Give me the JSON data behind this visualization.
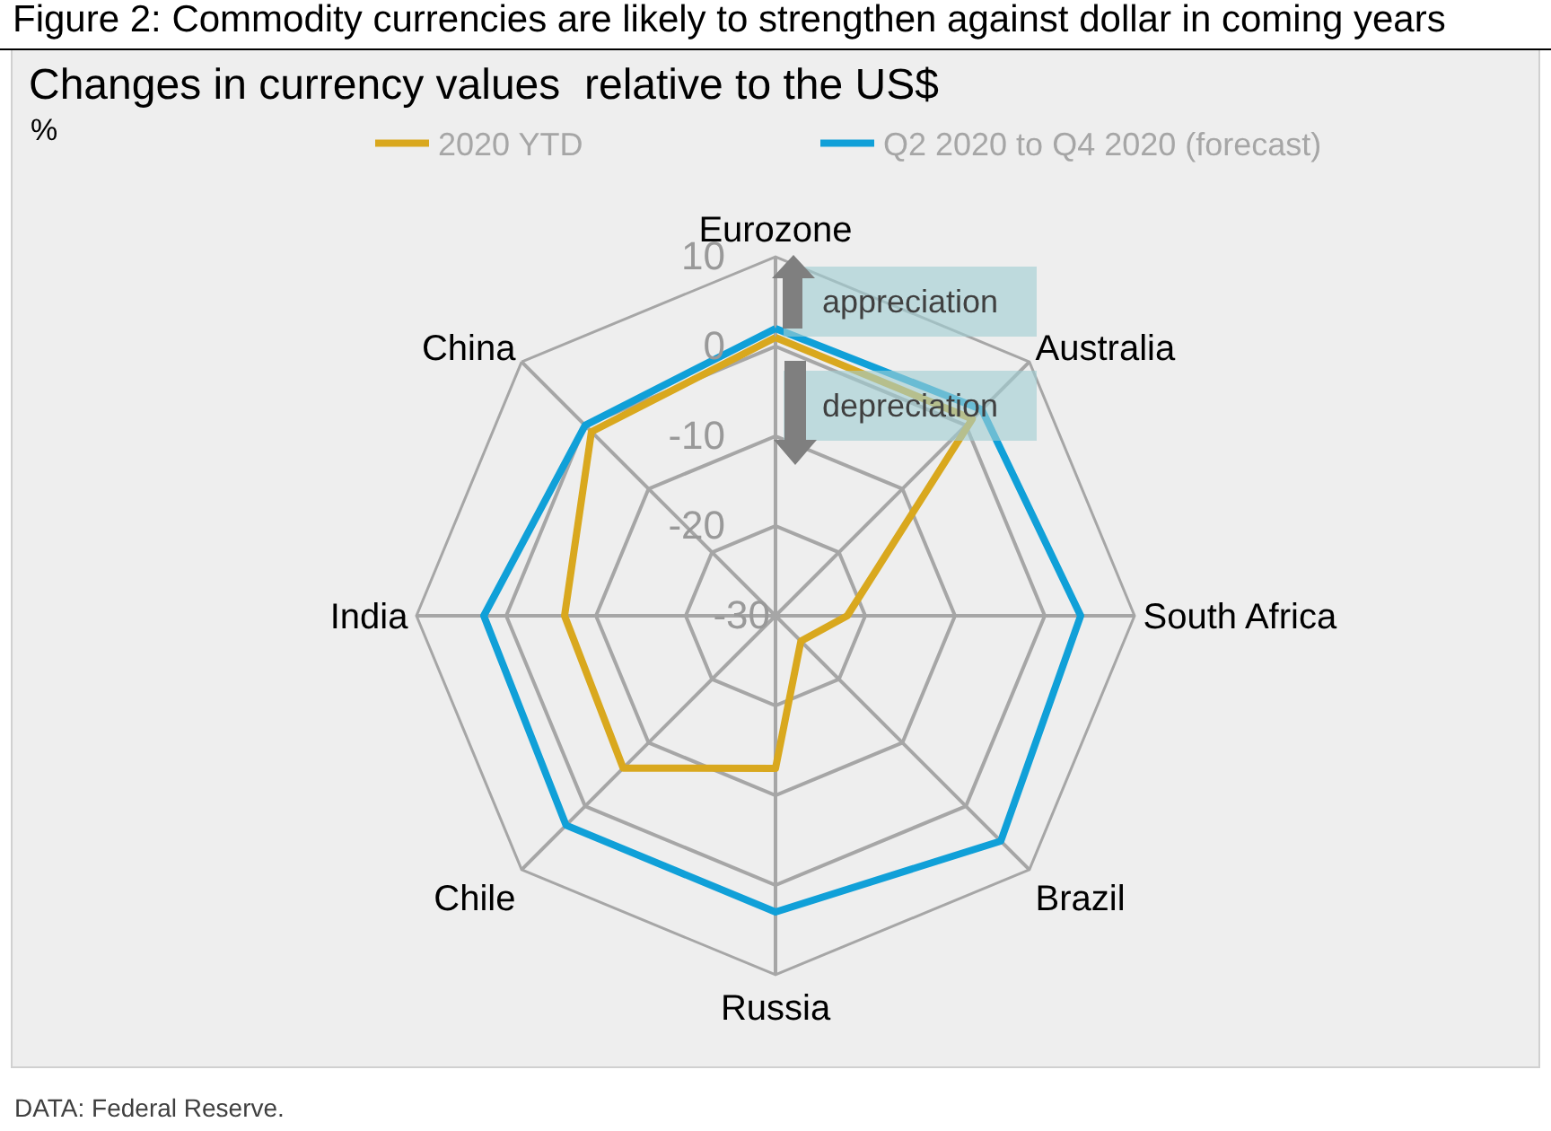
{
  "chart_data": {
    "type": "radar",
    "title": "Figure 2: Commodity currencies are likely to strengthen against dollar in coming years",
    "subtitle": "Changes in currency values  relative to the US$",
    "ylabel": "%",
    "categories": [
      "Eurozone",
      "Australia",
      "South Africa",
      "Brazil",
      "Russia",
      "Chile",
      "India",
      "China"
    ],
    "series": [
      {
        "name": "2020 YTD",
        "color": "#d9a81e",
        "values": [
          1,
          1,
          -22,
          -26,
          -13,
          -6,
          -6.5,
          -1
        ]
      },
      {
        "name": "Q2 2020 to Q4 2020 (forecast)",
        "color": "#10a0d8",
        "values": [
          2,
          2.5,
          4,
          5.5,
          3,
          3,
          2.5,
          0
        ]
      }
    ],
    "ylim": [
      -30,
      10
    ],
    "yticks": [
      -30,
      -20,
      -10,
      0,
      10
    ],
    "grid": true,
    "legend": "top",
    "line_style": "solid",
    "annotations": [
      "appreciation",
      "depreciation",
      "DATA: Federal Reserve."
    ]
  }
}
